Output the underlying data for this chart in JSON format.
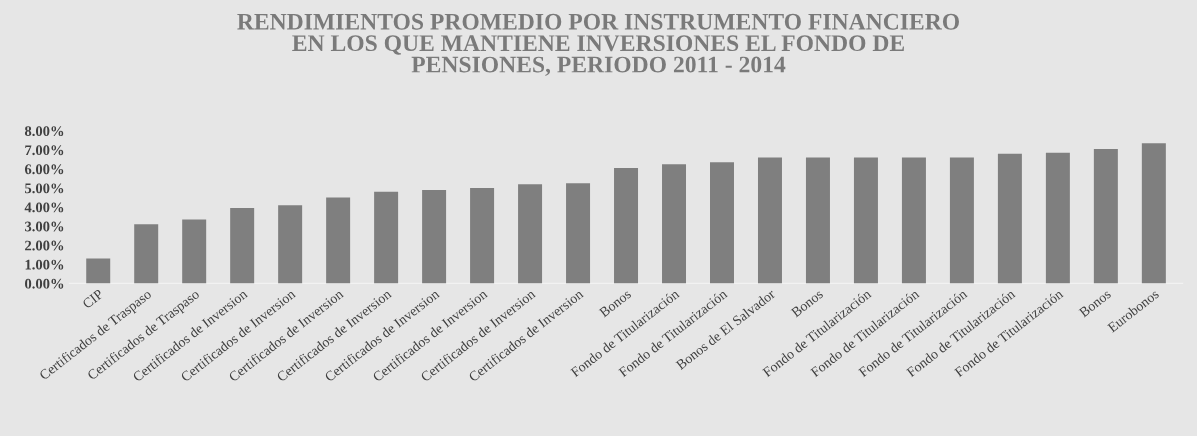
{
  "chart_data": {
    "type": "bar",
    "title": "RENDIMIENTOS PROMEDIO POR INSTRUMENTO FINANCIERO\nEN LOS QUE MANTIENE INVERSIONES EL FONDO DE\nPENSIONES, PERIODO 2011 - 2014",
    "categories": [
      "CIP",
      "Certificados de Traspaso",
      "Certificados de Traspaso",
      "Certificados de Inversion",
      "Certificados de Inversion",
      "Certificados de Inversion",
      "Certificados de Inversion",
      "Certificados de Inversion",
      "Certificados de Inversion",
      "Certificados de Inversion",
      "Certificados de Inversion",
      "Bonos",
      "Fondo de Titularización",
      "Fondo de Titularización",
      "Bonos de El Salvador",
      "Bonos",
      "Fondo de Titularización",
      "Fondo de Titularización",
      "Fondo de Titularización",
      "Fondo de Titularización",
      "Fondo de Titularización",
      "Bonos",
      "Eurobonos"
    ],
    "values": [
      1.3,
      3.1,
      3.35,
      3.95,
      4.1,
      4.5,
      4.8,
      4.9,
      5.0,
      5.2,
      5.25,
      6.05,
      6.25,
      6.35,
      6.6,
      6.6,
      6.6,
      6.6,
      6.6,
      6.8,
      6.85,
      7.05,
      7.35
    ],
    "color": "#7f7f7f",
    "ylim": [
      0,
      8
    ],
    "yticks": [
      {
        "value": 0,
        "label": "0.00%"
      },
      {
        "value": 1,
        "label": "1.00%"
      },
      {
        "value": 2,
        "label": "2.00%"
      },
      {
        "value": 3,
        "label": "3.00%"
      },
      {
        "value": 4,
        "label": "4.00%"
      },
      {
        "value": 5,
        "label": "5.00%"
      },
      {
        "value": 6,
        "label": "6.00%"
      },
      {
        "value": 7,
        "label": "7.00%"
      },
      {
        "value": 8,
        "label": "8.00%"
      }
    ],
    "grid": false,
    "legend": false
  }
}
